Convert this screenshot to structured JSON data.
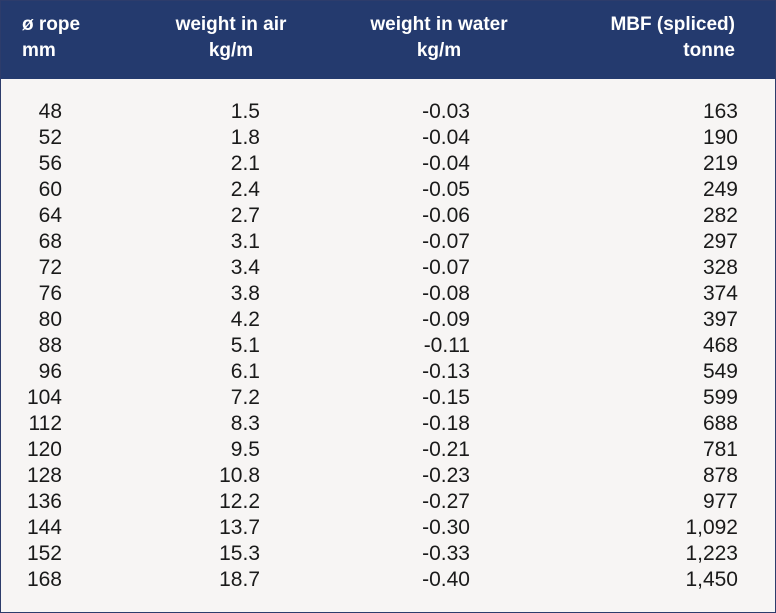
{
  "headers": [
    {
      "line1": "ø rope",
      "line2": "mm"
    },
    {
      "line1": "weight in air",
      "line2": "kg/m"
    },
    {
      "line1": "weight in water",
      "line2": "kg/m"
    },
    {
      "line1": "MBF (spliced)",
      "line2": "tonne"
    }
  ],
  "rows": [
    [
      "48",
      "1.5",
      "-0.03",
      "163"
    ],
    [
      "52",
      "1.8",
      "-0.04",
      "190"
    ],
    [
      "56",
      "2.1",
      "-0.04",
      "219"
    ],
    [
      "60",
      "2.4",
      "-0.05",
      "249"
    ],
    [
      "64",
      "2.7",
      "-0.06",
      "282"
    ],
    [
      "68",
      "3.1",
      "-0.07",
      "297"
    ],
    [
      "72",
      "3.4",
      "-0.07",
      "328"
    ],
    [
      "76",
      "3.8",
      "-0.08",
      "374"
    ],
    [
      "80",
      "4.2",
      "-0.09",
      "397"
    ],
    [
      "88",
      "5.1",
      "-0.11",
      "468"
    ],
    [
      "96",
      "6.1",
      "-0.13",
      "549"
    ],
    [
      "104",
      "7.2",
      "-0.15",
      "599"
    ],
    [
      "112",
      "8.3",
      "-0.18",
      "688"
    ],
    [
      "120",
      "9.5",
      "-0.21",
      "781"
    ],
    [
      "128",
      "10.8",
      "-0.23",
      "878"
    ],
    [
      "136",
      "12.2",
      "-0.27",
      "977"
    ],
    [
      "144",
      "13.7",
      "-0.30",
      "1,092"
    ],
    [
      "152",
      "15.3",
      "-0.33",
      "1,223"
    ],
    [
      "168",
      "18.7",
      "-0.40",
      "1,450"
    ]
  ],
  "colors": {
    "header_bg": "#243a6e",
    "header_text": "#ffffff",
    "body_bg": "#f7f5f4",
    "body_text": "#1a1a1a"
  }
}
